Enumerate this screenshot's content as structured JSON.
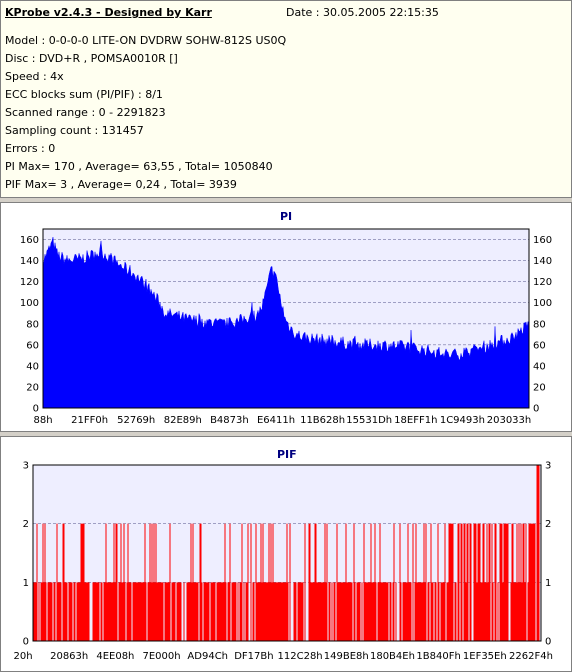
{
  "header": {
    "title": "KProbe v2.4.3 - Designed by Karr",
    "date": "Date : 30.05.2005 22:15:35"
  },
  "info_lines": [
    "Model : 0-0-0-0 LITE-ON DVDRW SOHW-812S  US0Q",
    "Disc : DVD+R , POMSA0010R []",
    "Speed : 4x",
    "ECC blocks sum (PI/PIF) : 8/1",
    "Scanned range : 0 - 2291823",
    "Sampling count : 131457",
    "Errors : 0",
    "PI Max= 170 , Average= 63,55 , Total= 1050840",
    "PIF Max= 3 , Average= 0,24 , Total= 3939"
  ],
  "colors": {
    "pi": "#0000ff",
    "pif": "#ff0000",
    "plot_bg": "#eeeeff",
    "title": "#000080"
  },
  "chart_data": [
    {
      "type": "area",
      "title": "PI",
      "ylim": [
        0,
        170
      ],
      "yticks": [
        0,
        20,
        40,
        60,
        80,
        100,
        120,
        140,
        160
      ],
      "xlabels": [
        "88h",
        "21FF0h",
        "52769h",
        "82E89h",
        "B4873h",
        "E6411h",
        "11B628h",
        "15531Dh",
        "18EFF1h",
        "1C9493h",
        "203033h"
      ],
      "grid": true,
      "profile": [
        [
          0,
          140
        ],
        [
          0.01,
          148
        ],
        [
          0.02,
          158
        ],
        [
          0.03,
          145
        ],
        [
          0.05,
          140
        ],
        [
          0.08,
          142
        ],
        [
          0.1,
          145
        ],
        [
          0.12,
          148
        ],
        [
          0.14,
          142
        ],
        [
          0.16,
          135
        ],
        [
          0.18,
          130
        ],
        [
          0.2,
          122
        ],
        [
          0.22,
          112
        ],
        [
          0.24,
          100
        ],
        [
          0.25,
          90
        ],
        [
          0.27,
          88
        ],
        [
          0.3,
          84
        ],
        [
          0.33,
          82
        ],
        [
          0.36,
          80
        ],
        [
          0.38,
          80
        ],
        [
          0.4,
          82
        ],
        [
          0.42,
          86
        ],
        [
          0.44,
          88
        ],
        [
          0.45,
          95
        ],
        [
          0.46,
          112
        ],
        [
          0.47,
          132
        ],
        [
          0.48,
          122
        ],
        [
          0.49,
          100
        ],
        [
          0.5,
          82
        ],
        [
          0.52,
          70
        ],
        [
          0.55,
          66
        ],
        [
          0.6,
          63
        ],
        [
          0.65,
          60
        ],
        [
          0.7,
          60
        ],
        [
          0.75,
          58
        ],
        [
          0.8,
          54
        ],
        [
          0.84,
          50
        ],
        [
          0.88,
          54
        ],
        [
          0.92,
          60
        ],
        [
          0.96,
          66
        ],
        [
          0.98,
          72
        ],
        [
          1.0,
          80
        ]
      ],
      "noise": 12
    },
    {
      "type": "bar",
      "title": "PIF",
      "ylim": [
        0,
        3
      ],
      "yticks": [
        0,
        1,
        2,
        3
      ],
      "xlabels": [
        "20h",
        "20863h",
        "4EE08h",
        "7E000h",
        "AD94Ch",
        "DF17Bh",
        "112C28h",
        "149BE8h",
        "180B4Eh",
        "1B840Fh",
        "1EF35Eh",
        "2262F4h"
      ],
      "grid": true,
      "bar_density": 0.85
    }
  ]
}
